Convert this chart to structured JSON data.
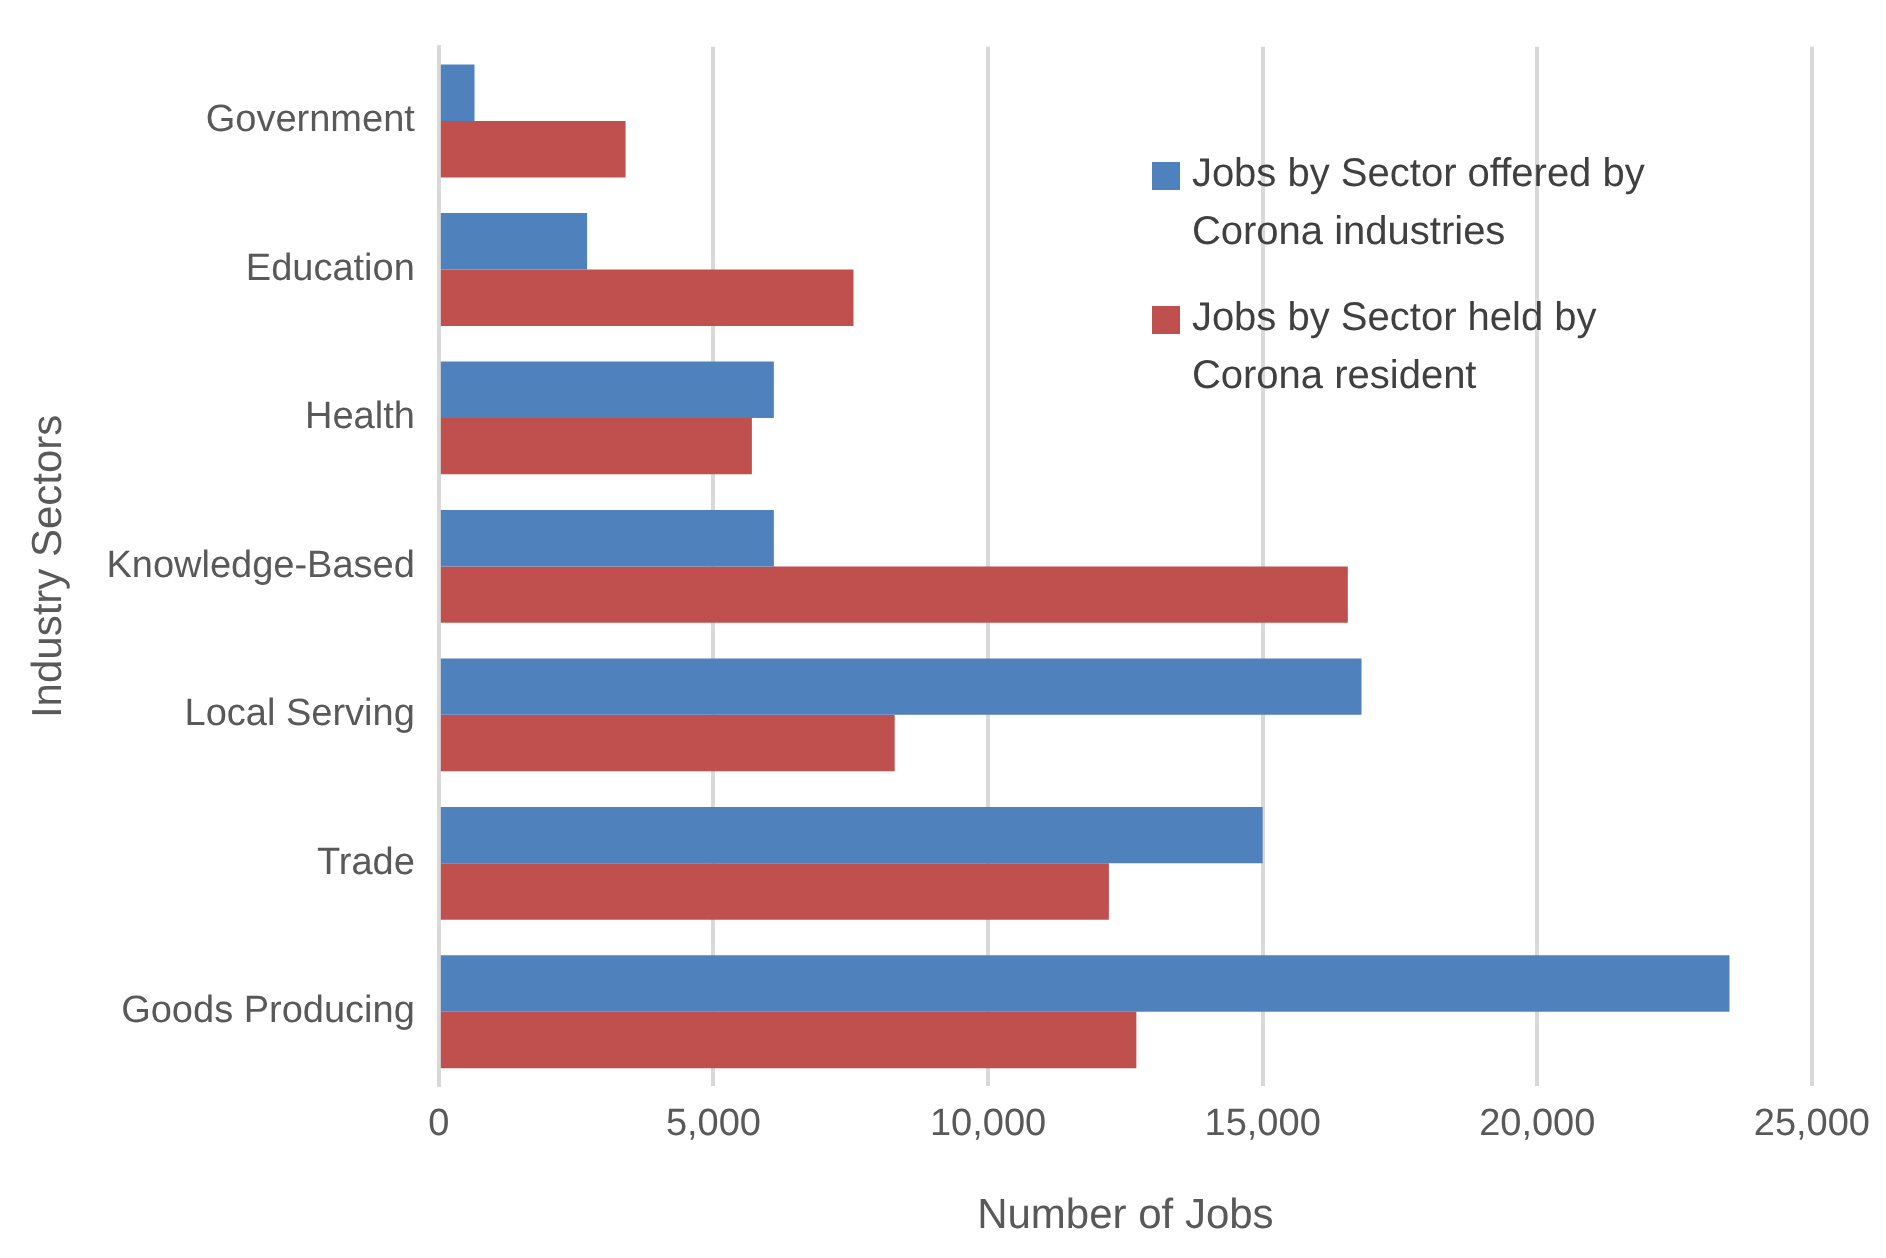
{
  "chart_data": {
    "type": "bar",
    "orientation": "horizontal",
    "xlabel": "Number of Jobs",
    "ylabel": "Industry Sectors",
    "categories": [
      "Government",
      "Education",
      "Health",
      "Knowledge-Based",
      "Local Serving",
      "Trade",
      "Goods Producing"
    ],
    "series": [
      {
        "name": "Jobs by Sector offered by Corona industries",
        "color": "#4f81bd",
        "values": [
          650,
          2700,
          6100,
          6100,
          16800,
          15000,
          23500
        ]
      },
      {
        "name": "Jobs by Sector held by Corona resident",
        "color": "#c0504d",
        "values": [
          3400,
          7550,
          5700,
          16550,
          8300,
          12200,
          12700
        ]
      }
    ],
    "xlim": [
      0,
      25000
    ],
    "xticks": [
      {
        "value": 0,
        "label": "0"
      },
      {
        "value": 5000,
        "label": "5,000"
      },
      {
        "value": 10000,
        "label": "10,000"
      },
      {
        "value": 15000,
        "label": "15,000"
      },
      {
        "value": 20000,
        "label": "20,000"
      },
      {
        "value": 25000,
        "label": "25,000"
      }
    ],
    "grid": "x",
    "legend": "top right"
  }
}
